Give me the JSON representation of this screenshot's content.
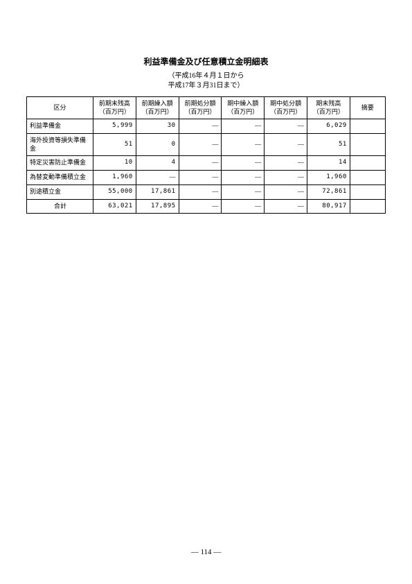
{
  "title": "利益準備金及び任意積立金明細表",
  "subtitle_line1": "（平成16年４月１日から",
  "subtitle_line2": "平成17年３月31日まで）",
  "page_number": "― 114 ―",
  "table": {
    "columns": [
      "区分",
      "前期末残高\n（百万円）",
      "前期繰入額\n（百万円）",
      "前期処分額\n（百万円）",
      "期中繰入額\n（百万円）",
      "期中処分額\n（百万円）",
      "期末残高\n（百万円）",
      "摘要"
    ],
    "rows": [
      {
        "category": "利益準備金",
        "v1": "5,999",
        "v2": "30",
        "v3": "―",
        "v4": "―",
        "v5": "―",
        "v6": "6,029",
        "remark": ""
      },
      {
        "category": "海外投資等損失準備金",
        "v1": "51",
        "v2": "0",
        "v3": "―",
        "v4": "―",
        "v5": "―",
        "v6": "51",
        "remark": ""
      },
      {
        "category": "特定災害防止準備金",
        "v1": "10",
        "v2": "4",
        "v3": "―",
        "v4": "―",
        "v5": "―",
        "v6": "14",
        "remark": ""
      },
      {
        "category": "為替変動準備積立金",
        "v1": "1,960",
        "v2": "―",
        "v3": "―",
        "v4": "―",
        "v5": "―",
        "v6": "1,960",
        "remark": ""
      },
      {
        "category": "別途積立金",
        "v1": "55,000",
        "v2": "17,861",
        "v3": "―",
        "v4": "―",
        "v5": "―",
        "v6": "72,861",
        "remark": ""
      }
    ],
    "total": {
      "category": "合計",
      "v1": "63,021",
      "v2": "17,895",
      "v3": "―",
      "v4": "―",
      "v5": "―",
      "v6": "80,917",
      "remark": ""
    }
  }
}
